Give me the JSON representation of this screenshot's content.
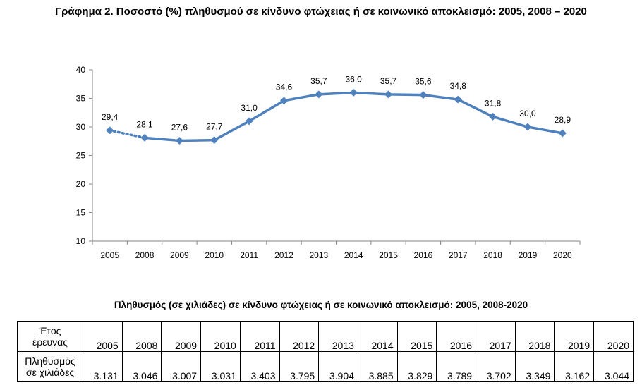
{
  "chart_data": {
    "type": "line",
    "title": "Γράφημα 2. Ποσοστό (%) πληθυσμού σε κίνδυνο φτώχειας ή σε κοινωνικό αποκλεισμό: 2005, 2008 – 2020",
    "categories": [
      "2005",
      "2008",
      "2009",
      "2010",
      "2011",
      "2012",
      "2013",
      "2014",
      "2015",
      "2016",
      "2017",
      "2018",
      "2019",
      "2020"
    ],
    "values": [
      29.4,
      28.1,
      27.6,
      27.7,
      31.0,
      34.6,
      35.7,
      36.0,
      35.7,
      35.6,
      34.8,
      31.8,
      30.0,
      28.9
    ],
    "data_labels": [
      "29,4",
      "28,1",
      "27,6",
      "27,7",
      "31,0",
      "34,6",
      "35,7",
      "36,0",
      "35,7",
      "35,6",
      "34,8",
      "31,8",
      "30,0",
      "28,9"
    ],
    "ylim": [
      10,
      40
    ],
    "yticks": [
      "10",
      "15",
      "20",
      "25",
      "30",
      "35",
      "40"
    ],
    "line_color": "#4F81BD",
    "dotted_segment": "2005-2008",
    "xlabel": "",
    "ylabel": ""
  },
  "table": {
    "title": "Πληθυσμός (σε χιλιάδες) σε κίνδυνο φτώχειας ή σε κοινωνικό αποκλεισμό: 2005, 2008-2020",
    "header_label": [
      "Έτος",
      "έρευνας"
    ],
    "row_label": [
      "Πληθυσμός",
      "σε χιλιάδες"
    ],
    "years": [
      "2005",
      "2008",
      "2009",
      "2010",
      "2011",
      "2012",
      "2013",
      "2014",
      "2015",
      "2016",
      "2017",
      "2018",
      "2019",
      "2020"
    ],
    "values": [
      "3.131",
      "3.046",
      "3.007",
      "3.031",
      "3.403",
      "3.795",
      "3.904",
      "3.885",
      "3.829",
      "3.789",
      "3.702",
      "3.349",
      "3.162",
      "3.044"
    ]
  }
}
